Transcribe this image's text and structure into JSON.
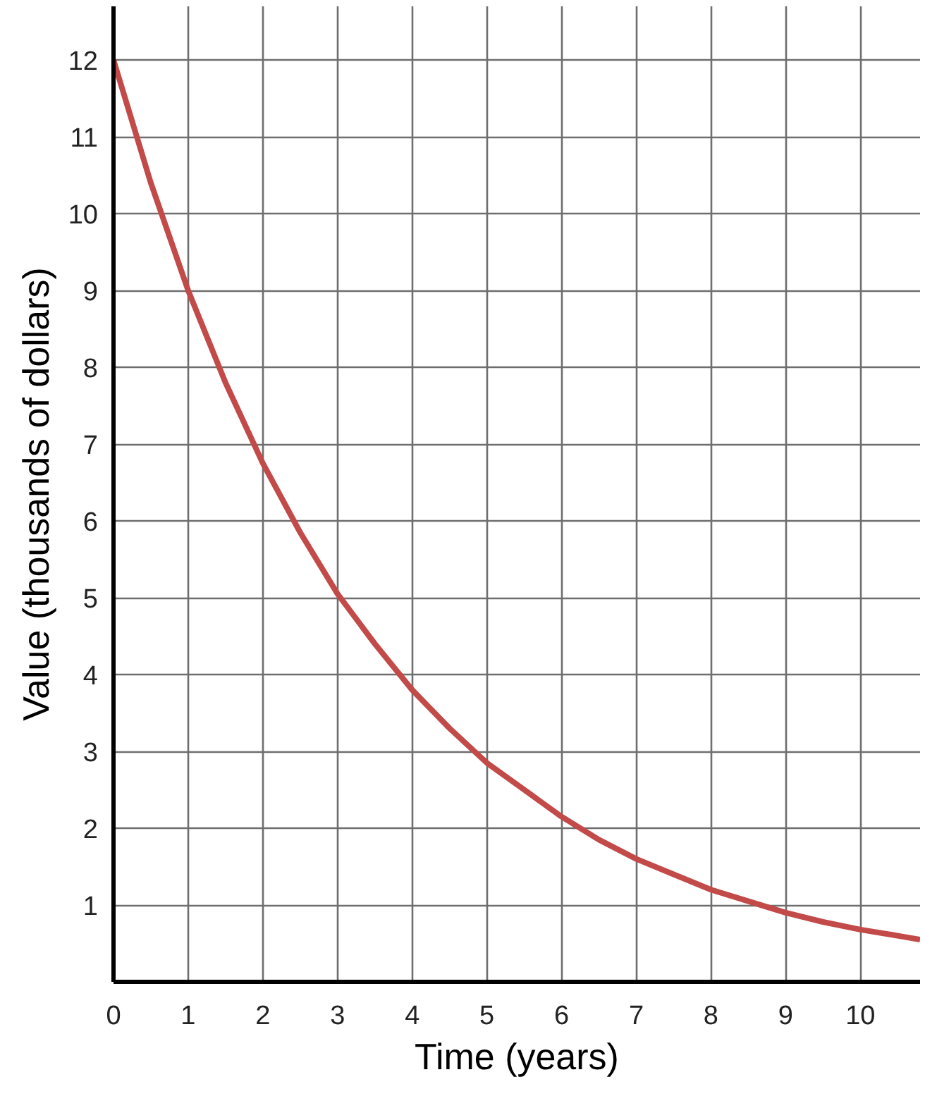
{
  "chart_data": {
    "type": "line",
    "xlabel": "Time (years)",
    "ylabel": "Value (thousands of dollars)",
    "x": [
      0,
      0.5,
      1,
      1.5,
      2,
      2.5,
      3,
      3.5,
      4,
      4.5,
      5,
      5.5,
      6,
      6.5,
      7,
      7.5,
      8,
      8.5,
      9,
      9.5,
      10,
      10.5,
      10.8
    ],
    "series": [
      {
        "color": "#c24a48",
        "values": [
          12,
          10.4,
          9,
          7.8,
          6.75,
          5.85,
          5.05,
          4.4,
          3.8,
          3.3,
          2.85,
          2.5,
          2.15,
          1.85,
          1.6,
          1.4,
          1.2,
          1.05,
          0.9,
          0.78,
          0.68,
          0.6,
          0.55
        ]
      }
    ],
    "xlim": [
      0,
      10.8
    ],
    "ylim": [
      0,
      12.7
    ],
    "xticks": [
      0,
      1,
      2,
      3,
      4,
      5,
      6,
      7,
      8,
      9,
      10
    ],
    "yticks": [
      1,
      2,
      3,
      4,
      5,
      6,
      7,
      8,
      9,
      10,
      11,
      12
    ],
    "grid": true,
    "marker": "none",
    "line_style": "solid"
  }
}
